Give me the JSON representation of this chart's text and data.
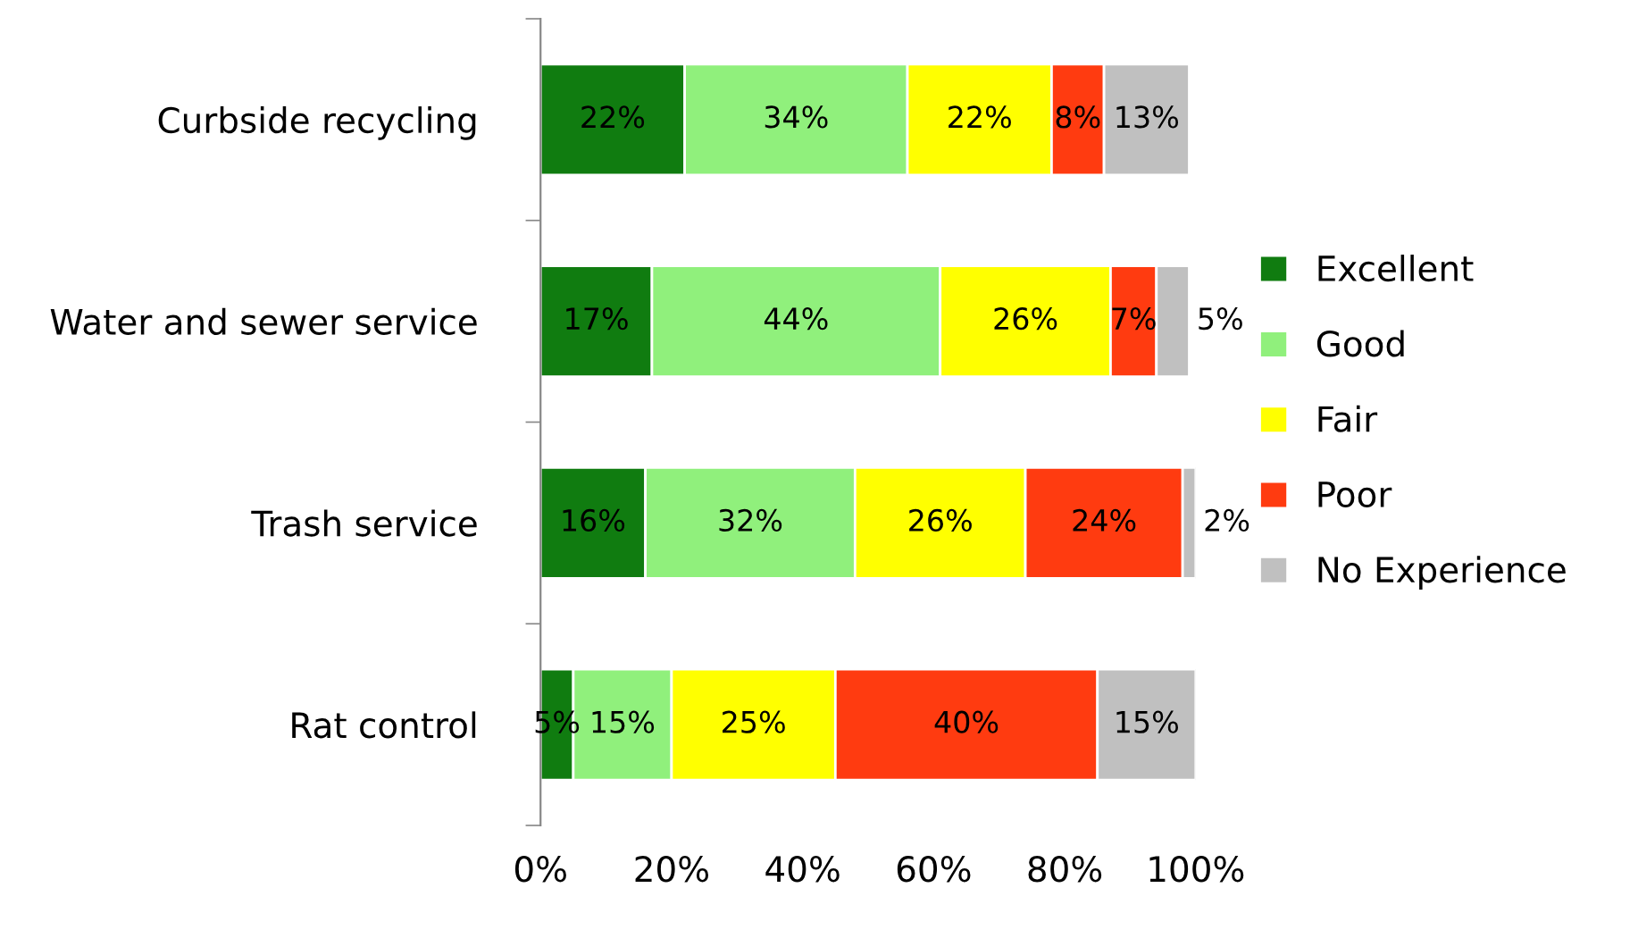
{
  "chart_data": {
    "type": "bar",
    "orientation": "horizontal",
    "stacked": true,
    "categories": [
      "Curbside recycling",
      "Water and sewer service",
      "Trash service",
      "Rat control"
    ],
    "series": [
      {
        "name": "Excellent",
        "color": "#107c10",
        "values": [
          22,
          17,
          16,
          5
        ],
        "value_labels": [
          "22%",
          "17%",
          "16%",
          "5%"
        ]
      },
      {
        "name": "Good",
        "color": "#90f07c",
        "values": [
          34,
          44,
          32,
          15
        ],
        "value_labels": [
          "34%",
          "44%",
          "32%",
          "15%"
        ]
      },
      {
        "name": "Fair",
        "color": "#ffff00",
        "values": [
          22,
          26,
          26,
          25
        ],
        "value_labels": [
          "22%",
          "26%",
          "26%",
          "25%"
        ]
      },
      {
        "name": "Poor",
        "color": "#ff3b10",
        "values": [
          8,
          7,
          24,
          40
        ],
        "value_labels": [
          "8%",
          "7%",
          "24%",
          "40%"
        ]
      },
      {
        "name": "No Experience",
        "color": "#c0c0c0",
        "values": [
          13,
          5,
          2,
          15
        ],
        "value_labels": [
          "13%",
          "5%",
          "2%",
          "15%"
        ]
      }
    ],
    "xlim": [
      0,
      100
    ],
    "xticks": [
      {
        "value": 0,
        "label": "0%"
      },
      {
        "value": 20,
        "label": "20%"
      },
      {
        "value": 40,
        "label": "40%"
      },
      {
        "value": 60,
        "label": "60%"
      },
      {
        "value": 80,
        "label": "80%"
      },
      {
        "value": 100,
        "label": "100%"
      }
    ],
    "legend": "right",
    "grid": false
  }
}
